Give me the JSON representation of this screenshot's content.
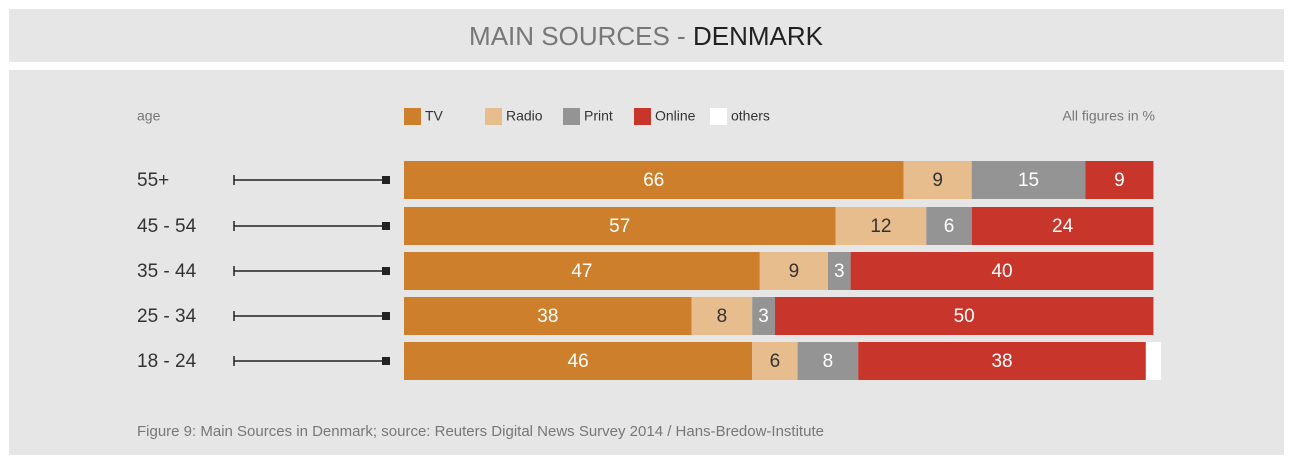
{
  "chart_data": {
    "type": "stacked_barh",
    "title": "MAIN SOURCES - ",
    "title_country": "DENMARK",
    "axis_label": "age",
    "note": "All figures in %",
    "caption": "Figure 9: Main Sources in Denmark; source: Reuters Digital News Survey 2014 / Hans-Bredow-Institute",
    "categories": [
      "55+",
      "45 - 54",
      "35 - 44",
      "25 - 34",
      "18 - 24"
    ],
    "xlim": [
      0,
      100
    ],
    "series": [
      {
        "name": "TV",
        "color": "#cd7f2b",
        "values": [
          66,
          57,
          47,
          38,
          46
        ]
      },
      {
        "name": "Radio",
        "color": "#e8bd8e",
        "values": [
          9,
          12,
          9,
          8,
          6
        ]
      },
      {
        "name": "Print",
        "color": "#949494",
        "values": [
          15,
          6,
          3,
          3,
          8
        ]
      },
      {
        "name": "Online",
        "color": "#c8352a",
        "values": [
          9,
          24,
          40,
          50,
          38
        ]
      },
      {
        "name": "others",
        "color": "#ffffff",
        "values": [
          null,
          null,
          null,
          null,
          2
        ],
        "data_labels": false
      }
    ]
  }
}
